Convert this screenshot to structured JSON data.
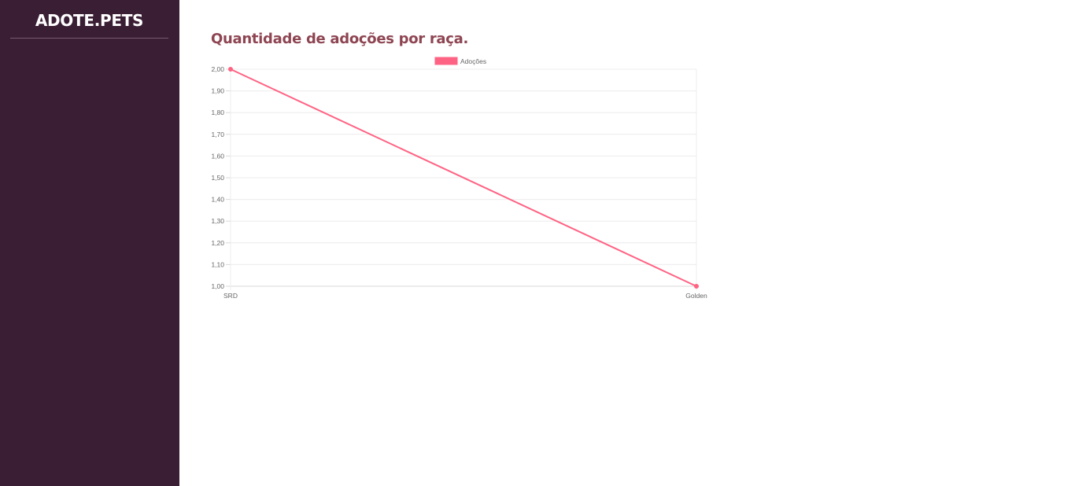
{
  "sidebar": {
    "brand": "ADOTE.PETS"
  },
  "main": {
    "title": "Quantidade de adoções por raça."
  },
  "chart_data": {
    "type": "line",
    "categories": [
      "SRD",
      "Golden"
    ],
    "series": [
      {
        "name": "Adoções",
        "values": [
          2,
          1
        ],
        "color": "#ff6384"
      }
    ],
    "ylim": [
      1,
      2
    ],
    "yticks": [
      "2,00",
      "1,90",
      "1,80",
      "1,70",
      "1,60",
      "1,50",
      "1,40",
      "1,30",
      "1,20",
      "1,10",
      "1,00"
    ],
    "grid": true,
    "legend": "top"
  },
  "colors": {
    "sidebar_bg": "#3a1e34",
    "title": "#8e4552",
    "series": "#ff6384"
  }
}
